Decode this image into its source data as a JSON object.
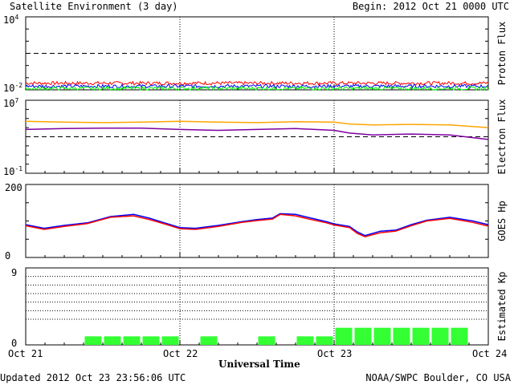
{
  "title": "Satellite Environment (3 day)",
  "begin": "Begin:  2012 Oct 21 0000 UTC",
  "xlabel": "Universal Time",
  "updated": "Updated 2012 Oct 23 23:56:06 UTC",
  "credit": "NOAA/SWPC Boulder, CO USA",
  "x_ticks": [
    "Oct 21",
    "Oct 22",
    "Oct 23",
    "Oct 24"
  ],
  "colors": {
    "red": "#ff0000",
    "blue": "#0000ff",
    "green": "#00ff00",
    "orange": "#ffa500",
    "purple": "#7f00a0",
    "bar": "#33ff33"
  },
  "chart_data": [
    {
      "type": "line",
      "name": "proton-flux",
      "ylabel": "Proton Flux",
      "scale": "log",
      "ylim_exp": [
        -2,
        4
      ],
      "y_ticks": [
        {
          "base": "10",
          "exp": "4"
        },
        {
          "base": "10",
          "exp": "-2"
        }
      ],
      "reference_line_exp": 1,
      "x_days": [
        0,
        3
      ],
      "series": [
        {
          "color": "red",
          "level_exp": -1.45
        },
        {
          "color": "blue",
          "level_exp": -1.7
        },
        {
          "color": "green",
          "level_exp": -1.88
        }
      ]
    },
    {
      "type": "line",
      "name": "electron-flux",
      "ylabel": "Electron Flux",
      "scale": "log",
      "ylim_exp": [
        -1,
        7
      ],
      "y_ticks": [
        {
          "base": "10",
          "exp": "7"
        },
        {
          "base": "10",
          "exp": "-1"
        }
      ],
      "reference_line_exp": 3,
      "x": [
        0,
        0.25,
        0.5,
        0.75,
        1.0,
        1.25,
        1.5,
        1.75,
        2.0,
        2.1,
        2.25,
        2.5,
        2.75,
        3.0
      ],
      "series": [
        {
          "color": "orange",
          "values_exp": [
            4.7,
            4.6,
            4.55,
            4.6,
            4.7,
            4.6,
            4.55,
            4.65,
            4.6,
            4.4,
            4.3,
            4.35,
            4.3,
            4.0
          ]
        },
        {
          "color": "purple",
          "values_exp": [
            3.8,
            3.9,
            3.95,
            3.95,
            3.8,
            3.7,
            3.8,
            3.9,
            3.7,
            3.4,
            3.2,
            3.3,
            3.2,
            2.7
          ]
        }
      ]
    },
    {
      "type": "line",
      "name": "goes-hp",
      "ylabel": "GOES Hp",
      "ylim": [
        0,
        200
      ],
      "y_ticks": [
        200,
        0
      ],
      "x": [
        0,
        0.12,
        0.25,
        0.4,
        0.55,
        0.7,
        0.8,
        0.9,
        1.0,
        1.1,
        1.25,
        1.4,
        1.5,
        1.6,
        1.65,
        1.75,
        1.85,
        1.95,
        2.0,
        2.1,
        2.15,
        2.2,
        2.3,
        2.4,
        2.5,
        2.6,
        2.75,
        2.9,
        3.0
      ],
      "series": [
        {
          "color": "blue",
          "values": [
            90,
            80,
            88,
            95,
            112,
            118,
            108,
            95,
            82,
            80,
            88,
            98,
            104,
            108,
            120,
            118,
            108,
            98,
            92,
            85,
            70,
            60,
            72,
            75,
            90,
            102,
            110,
            100,
            90
          ]
        },
        {
          "color": "red",
          "values": [
            87,
            77,
            85,
            93,
            110,
            114,
            104,
            92,
            79,
            77,
            85,
            96,
            101,
            105,
            118,
            114,
            104,
            95,
            89,
            82,
            66,
            57,
            68,
            72,
            87,
            100,
            107,
            96,
            86
          ]
        }
      ]
    },
    {
      "type": "bar",
      "name": "estimated-kp",
      "ylabel": "Estimated Kp",
      "ylim": [
        0,
        9
      ],
      "y_ticks": [
        9,
        0
      ],
      "bin_hours": 3,
      "values": [
        0,
        0,
        0,
        1,
        1,
        1,
        1,
        1,
        0,
        1,
        0,
        0,
        1,
        0,
        1,
        1,
        2,
        2,
        2,
        2,
        2,
        2,
        2,
        0
      ]
    }
  ]
}
